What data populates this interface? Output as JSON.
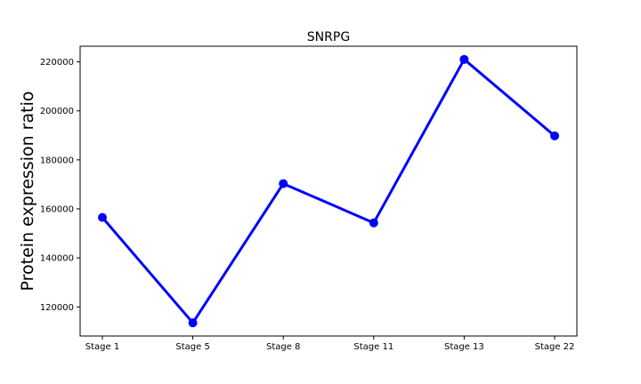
{
  "chart_data": {
    "type": "line",
    "title": "SNRPG",
    "xlabel": "",
    "ylabel": "Protein expression ratio",
    "categories": [
      "Stage 1",
      "Stage 5",
      "Stage 8",
      "Stage 11",
      "Stage 13",
      "Stage 22"
    ],
    "series": [
      {
        "name": "SNRPG",
        "values": [
          156500,
          113500,
          170300,
          154300,
          221000,
          189800
        ],
        "color": "#0000ff"
      }
    ],
    "yticks": [
      120000,
      140000,
      160000,
      180000,
      200000,
      220000
    ],
    "ytick_labels": [
      "120000",
      "140000",
      "160000",
      "180000",
      "200000",
      "220000"
    ],
    "ylim": [
      108125,
      226375
    ],
    "grid": false,
    "legend": "none"
  }
}
